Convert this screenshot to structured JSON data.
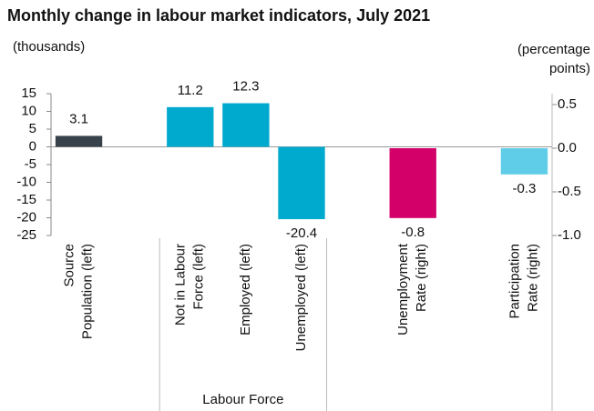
{
  "chart_data": {
    "type": "bar",
    "title": "Monthly change in labour market indicators, July 2021",
    "ylabel": "(thousands)",
    "y2label": [
      "(percentage",
      "points)"
    ],
    "categories": [
      [
        "Source",
        "Population (left)"
      ],
      null,
      [
        "Not in Labour",
        "Force (left)"
      ],
      [
        "Employed (left)"
      ],
      [
        "Unemployed (left)"
      ],
      null,
      [
        "Unemployment",
        "Rate (right)"
      ],
      null,
      [
        "Participation",
        "Rate (right)"
      ]
    ],
    "series": [
      {
        "axis": "y",
        "values": [
          3.1,
          null,
          11.2,
          12.3,
          -20.4,
          null,
          null,
          null,
          null
        ],
        "colors": [
          "#37424a",
          null,
          "#00a9ce",
          "#00a9ce",
          "#00a9ce",
          null,
          null,
          null,
          null
        ]
      },
      {
        "axis": "y2",
        "values": [
          null,
          null,
          null,
          null,
          null,
          null,
          -0.8,
          null,
          -0.3
        ],
        "colors": [
          null,
          null,
          null,
          null,
          null,
          null,
          "#d4006a",
          null,
          "#5fcde8"
        ]
      }
    ],
    "ylim": [
      -25,
      15
    ],
    "yticks": [
      15,
      10,
      5,
      0,
      -5,
      -10,
      -15,
      -20,
      -25
    ],
    "y2lim": [
      -1.0,
      0.625
    ],
    "y2ticks": [
      0.5,
      {
        "value": 0.0,
        "label": "0.0"
      },
      -0.5,
      {
        "value": -1.0,
        "label": "-1.0"
      }
    ],
    "group_label": "Labour Force"
  }
}
